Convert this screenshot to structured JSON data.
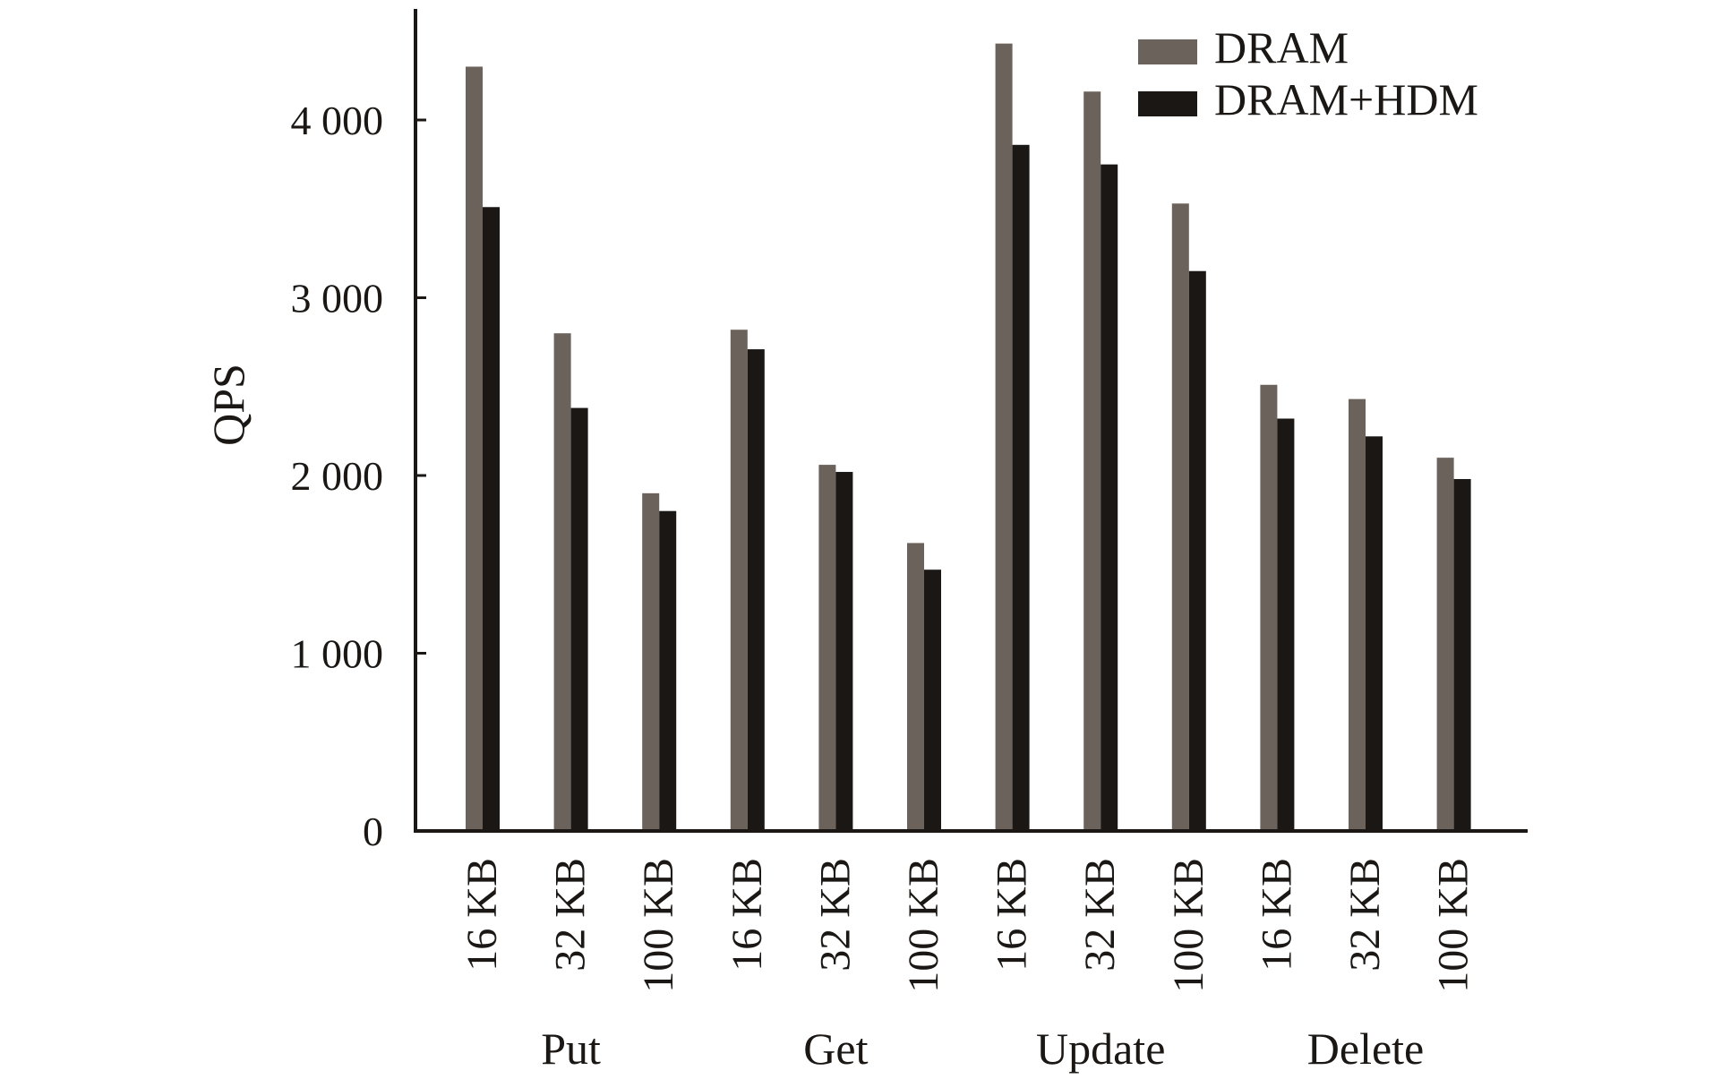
{
  "chart_data": {
    "type": "bar",
    "ylabel": "QPS",
    "ylim": [
      0,
      4600
    ],
    "yticks": [
      0,
      1000,
      2000,
      3000,
      4000
    ],
    "ytick_labels": [
      "0",
      "1 000",
      "2 000",
      "3 000",
      "4 000"
    ],
    "categories": [
      "16 KB",
      "32 KB",
      "100 KB",
      "16 KB",
      "32 KB",
      "100 KB",
      "16 KB",
      "32 KB",
      "100 KB",
      "16 KB",
      "32 KB",
      "100 KB"
    ],
    "groups": [
      {
        "label": "Put",
        "span": [
          0,
          2
        ]
      },
      {
        "label": "Get",
        "span": [
          3,
          5
        ]
      },
      {
        "label": "Update",
        "span": [
          6,
          8
        ]
      },
      {
        "label": "Delete",
        "span": [
          9,
          11
        ]
      }
    ],
    "series": [
      {
        "name": "DRAM",
        "color": "#6b625b",
        "values": [
          4300,
          2800,
          1900,
          2820,
          2060,
          1620,
          4430,
          4160,
          3530,
          2510,
          2430,
          2100
        ]
      },
      {
        "name": "DRAM+HDM",
        "color": "#1a1714",
        "values": [
          3510,
          2380,
          1800,
          2710,
          2020,
          1470,
          3860,
          3750,
          3150,
          2320,
          2220,
          1980
        ]
      }
    ],
    "legend_position": "top-right",
    "grid": false
  }
}
